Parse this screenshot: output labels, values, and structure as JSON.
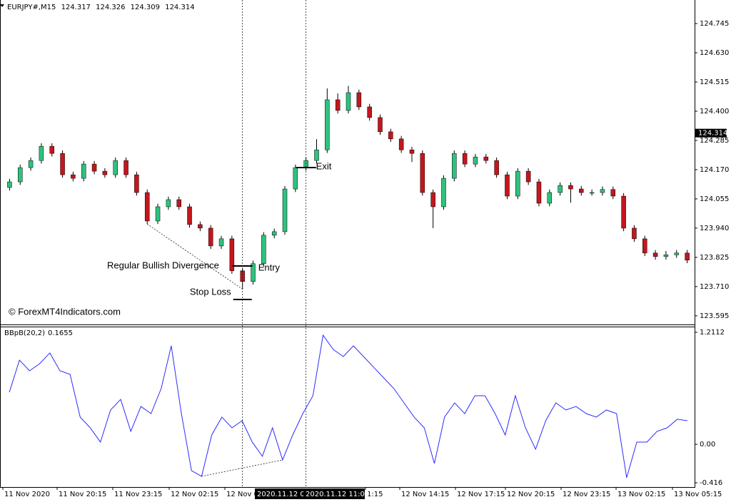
{
  "chart_data": [
    {
      "type": "candlestick",
      "title": "EURJPY#,M15",
      "quote": [
        124.317,
        124.326,
        124.309,
        124.314
      ],
      "ohlc": [
        [
          124.1,
          124.134,
          124.088,
          124.122
        ],
        [
          124.122,
          124.19,
          124.11,
          124.178
        ],
        [
          124.178,
          124.218,
          124.166,
          124.206
        ],
        [
          124.206,
          124.274,
          124.194,
          124.262
        ],
        [
          124.262,
          124.274,
          124.222,
          124.234
        ],
        [
          124.234,
          124.246,
          124.138,
          124.15
        ],
        [
          124.15,
          124.162,
          124.124,
          124.136
        ],
        [
          124.136,
          124.204,
          124.124,
          124.192
        ],
        [
          124.192,
          124.204,
          124.152,
          124.164
        ],
        [
          124.164,
          124.176,
          124.138,
          124.15
        ],
        [
          124.15,
          124.218,
          124.138,
          124.206
        ],
        [
          124.206,
          124.218,
          124.138,
          124.15
        ],
        [
          124.15,
          124.162,
          124.068,
          124.08
        ],
        [
          124.08,
          124.092,
          123.956,
          123.968
        ],
        [
          123.968,
          124.036,
          123.956,
          124.024
        ],
        [
          124.024,
          124.064,
          124.012,
          124.052
        ],
        [
          124.052,
          124.064,
          124.012,
          124.024
        ],
        [
          124.024,
          124.036,
          123.942,
          123.954
        ],
        [
          123.954,
          123.966,
          123.928,
          123.94
        ],
        [
          123.94,
          123.952,
          123.858,
          123.87
        ],
        [
          123.87,
          123.91,
          123.858,
          123.898
        ],
        [
          123.898,
          123.91,
          123.76,
          123.772
        ],
        [
          123.772,
          123.784,
          123.7,
          123.73
        ],
        [
          123.73,
          123.812,
          123.718,
          123.8
        ],
        [
          123.8,
          123.924,
          123.788,
          123.912
        ],
        [
          123.912,
          123.938,
          123.9,
          123.926
        ],
        [
          123.926,
          124.106,
          123.914,
          124.094
        ],
        [
          124.094,
          124.19,
          124.082,
          124.178
        ],
        [
          124.178,
          124.218,
          124.166,
          124.206
        ],
        [
          124.206,
          124.29,
          124.194,
          124.248
        ],
        [
          124.248,
          124.49,
          124.236,
          124.445
        ],
        [
          124.445,
          124.47,
          124.391,
          124.403
        ],
        [
          124.403,
          124.5,
          124.391,
          124.473
        ],
        [
          124.473,
          124.485,
          124.405,
          124.417
        ],
        [
          124.417,
          124.429,
          124.363,
          124.375
        ],
        [
          124.375,
          124.387,
          124.307,
          124.319
        ],
        [
          124.319,
          124.331,
          124.279,
          124.291
        ],
        [
          124.291,
          124.303,
          124.236,
          124.248
        ],
        [
          124.248,
          124.26,
          124.2,
          124.234
        ],
        [
          124.234,
          124.246,
          124.068,
          124.08
        ],
        [
          124.08,
          124.092,
          123.94,
          124.024
        ],
        [
          124.024,
          124.148,
          124.012,
          124.136
        ],
        [
          124.136,
          124.246,
          124.124,
          124.234
        ],
        [
          124.234,
          124.246,
          124.18,
          124.192
        ],
        [
          124.192,
          124.232,
          124.18,
          124.22
        ],
        [
          124.22,
          124.232,
          124.194,
          124.206
        ],
        [
          124.206,
          124.218,
          124.138,
          124.15
        ],
        [
          124.15,
          124.162,
          124.054,
          124.066
        ],
        [
          124.066,
          124.176,
          124.054,
          124.164
        ],
        [
          124.164,
          124.176,
          124.11,
          124.122
        ],
        [
          124.122,
          124.134,
          124.026,
          124.038
        ],
        [
          124.038,
          124.092,
          124.026,
          124.08
        ],
        [
          124.08,
          124.12,
          124.068,
          124.108
        ],
        [
          124.108,
          124.12,
          124.04,
          124.094
        ],
        [
          124.094,
          124.106,
          124.068,
          124.08
        ],
        [
          124.08,
          124.092,
          124.068,
          124.08
        ],
        [
          124.08,
          124.104,
          124.068,
          124.092
        ],
        [
          124.092,
          124.104,
          124.054,
          124.066
        ],
        [
          124.066,
          124.078,
          123.928,
          123.94
        ],
        [
          123.94,
          123.952,
          123.886,
          123.898
        ],
        [
          123.898,
          123.91,
          123.83,
          123.842
        ],
        [
          123.842,
          123.854,
          123.816,
          123.828
        ],
        [
          123.828,
          123.85,
          123.816,
          123.835
        ],
        [
          123.835,
          123.854,
          123.823,
          123.842
        ],
        [
          123.842,
          123.854,
          123.802,
          123.814
        ]
      ],
      "up_color": "#2ec27e",
      "down_color": "#c4161c",
      "ylim": [
        123.561,
        124.832
      ],
      "yticks": [
        124.745,
        {
          "value": 124.63,
          "label": "124.630"
        },
        124.515,
        {
          "value": 124.4,
          "label": "124.400"
        },
        124.285,
        {
          "value": 124.17,
          "label": "124.170"
        },
        124.055,
        {
          "value": 123.94,
          "label": "123.940"
        },
        123.825,
        {
          "value": 123.71,
          "label": "123.710"
        },
        123.595
      ],
      "last_price": 124.314,
      "annotations": {
        "divergence": "Regular Bullish Divergence",
        "entry": "Entry",
        "exit": "Exit",
        "stop_loss": "Stop Loss",
        "watermark": "© ForexMT4Indicators.com"
      }
    },
    {
      "type": "line",
      "title": "BBpB(20,2)",
      "last_value": 0.1655,
      "color": "#2d2dff",
      "values": [
        0.563,
        0.91,
        0.795,
        0.872,
        0.988,
        0.795,
        0.756,
        0.294,
        0.178,
        0.024,
        0.371,
        0.486,
        0.14,
        0.409,
        0.332,
        0.602,
        1.065,
        0.332,
        -0.285,
        -0.346,
        0.101,
        0.294,
        0.178,
        0.255,
        0.024,
        -0.13,
        0.178,
        -0.169,
        0.101,
        0.332,
        0.525,
        1.18,
        1.026,
        0.949,
        1.065,
        0.949,
        0.833,
        0.718,
        0.602,
        0.448,
        0.294,
        0.178,
        -0.207,
        0.294,
        0.448,
        0.332,
        0.525,
        0.525,
        0.332,
        0.101,
        0.525,
        0.178,
        -0.053,
        0.255,
        0.448,
        0.371,
        0.409,
        0.332,
        0.294,
        0.371,
        0.332,
        -0.361,
        0.024,
        0.024,
        0.14,
        0.178,
        0.271,
        0.255
      ],
      "ylim": [
        -0.462,
        1.273
      ],
      "yticks": [
        1.2112,
        {
          "value": 0,
          "label": "0.00"
        },
        -0.416
      ]
    }
  ],
  "time_axis": {
    "labels": [
      "11 Nov 2020",
      "11 Nov 20:15",
      "11 Nov 23:15",
      "12 Nov 02:15",
      "12 Nov 0",
      "1:15",
      "12 Nov 14:15",
      "12 Nov 17:15",
      "12 Nov 20:15",
      "12 Nov 23:15",
      "13 Nov 02:15",
      "13 Nov 05:15"
    ],
    "crosshair_labels": [
      "2020.11.12 0",
      "2020.11.12 11:00"
    ]
  }
}
